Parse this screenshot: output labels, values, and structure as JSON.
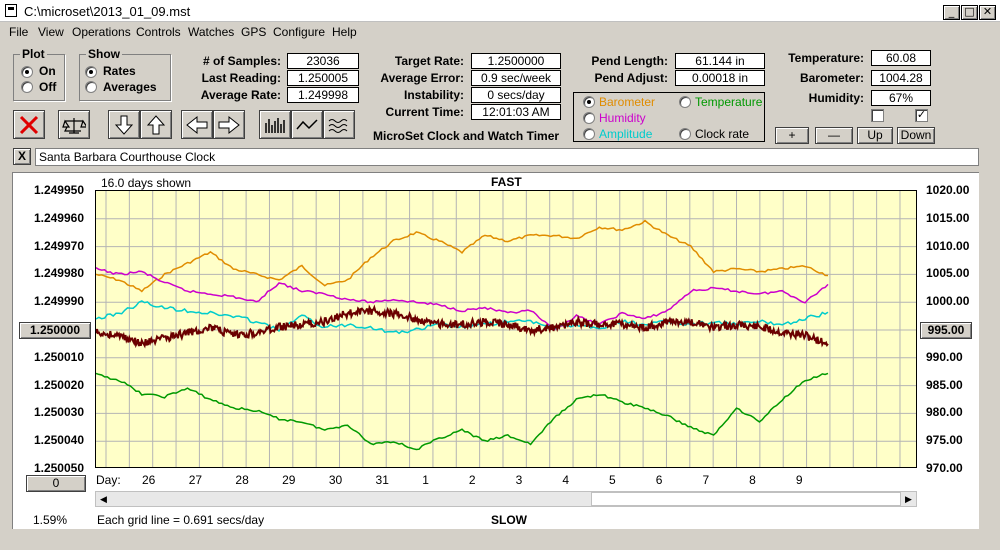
{
  "window": {
    "title": "C:\\microset\\2013_01_09.mst"
  },
  "menu": [
    "File",
    "View",
    "Operations",
    "Controls",
    "Watches",
    "GPS",
    "Configure",
    "Help"
  ],
  "plot_group": {
    "caption": "Plot",
    "on": "On",
    "off": "Off",
    "selected": "On"
  },
  "show_group": {
    "caption": "Show",
    "rates": "Rates",
    "averages": "Averages",
    "selected": "Rates"
  },
  "stats": {
    "samples_label": "# of Samples:",
    "samples": "23036",
    "last_label": "Last Reading:",
    "last": "1.250005",
    "avg_label": "Average Rate:",
    "avg": "1.249998",
    "target_label": "Target Rate:",
    "target": "1.2500000",
    "error_label": "Average Error:",
    "error": "0.9 sec/week",
    "instab_label": "Instability:",
    "instab": "0 secs/day",
    "time_label": "Current Time:",
    "time": "12:01:03 AM",
    "pend_len_label": "Pend Length:",
    "pend_len": "61.144 in",
    "pend_adj_label": "Pend Adjust:",
    "pend_adj": "0.00018 in",
    "temp_label": "Temperature:",
    "temp": "60.08",
    "baro_label": "Barometer:",
    "baro": "1004.28",
    "hum_label": "Humidity:",
    "hum": "67%"
  },
  "app_caption": "MicroSet Clock and Watch Timer",
  "aux_select": {
    "barometer": "Barometer",
    "temperature": "Temperature",
    "humidity": "Humidity",
    "amplitude": "Amplitude",
    "clock_rate": "Clock rate",
    "selected": "Barometer",
    "colors": {
      "barometer": "#e08c00",
      "temperature": "#009900",
      "humidity": "#cc00cc",
      "amplitude": "#00cccc",
      "clock_rate": "#000000"
    }
  },
  "scale_buttons": {
    "plus": "+",
    "minus": "—",
    "up": "Up",
    "down": "Down"
  },
  "checkboxes": [
    false,
    true
  ],
  "watch_name": "Santa Barbara Courthouse Clock",
  "close_x": "X",
  "graph": {
    "days_shown": "16.0 days shown",
    "fast": "FAST",
    "slow": "SLOW",
    "grid_note": "Each grid line = 0.691 secs/day",
    "percent": "1.59%",
    "day_label": "Day:",
    "left_value_button": "1.250000",
    "right_value_button": "995.00",
    "bottom_left_button": "0"
  },
  "chart_data": {
    "type": "line",
    "title": "",
    "y_left_ticks": [
      "1.249950",
      "1.249960",
      "1.249970",
      "1.249980",
      "1.249990",
      "1.250000",
      "1.250010",
      "1.250020",
      "1.250030",
      "1.250040",
      "1.250050"
    ],
    "y_right_ticks": [
      "1020.00",
      "1015.00",
      "1010.00",
      "1005.00",
      "1000.00",
      "995.00",
      "990.00",
      "985.00",
      "980.00",
      "975.00",
      "970.00"
    ],
    "x_ticks": [
      "26",
      "27",
      "28",
      "29",
      "30",
      "31",
      "1",
      "2",
      "3",
      "4",
      "5",
      "6",
      "7",
      "8",
      "9"
    ],
    "ylim_left": [
      1.24995,
      1.25005
    ],
    "ylim_right": [
      970,
      1020
    ],
    "grid": true,
    "series": [
      {
        "key": "barometer",
        "color": "#e08c00",
        "right_axis": true,
        "x": [
          0,
          1,
          2,
          3,
          4,
          5,
          6,
          7,
          8,
          9,
          10,
          11,
          12,
          13,
          14,
          15,
          16,
          17,
          18,
          19,
          20,
          21,
          22,
          23,
          24,
          25,
          26,
          27,
          28,
          29,
          30,
          31,
          32
        ],
        "values": [
          1005.0,
          1004.0,
          1002.0,
          1005.0,
          1007.0,
          1009.0,
          1006.0,
          1005.0,
          1004.0,
          1006.5,
          1003.0,
          1004.0,
          1008.0,
          1011.0,
          1012.5,
          1011.0,
          1009.0,
          1012.0,
          1011.0,
          1012.0,
          1012.0,
          1011.5,
          1013.5,
          1013.0,
          1014.5,
          1012.0,
          1010.0,
          1005.5,
          1006.0,
          1005.5,
          1006.0,
          1006.5,
          1004.8
        ]
      },
      {
        "key": "humidity",
        "color": "#cc00cc",
        "right_axis": true,
        "x": [
          0,
          1,
          2,
          3,
          4,
          5,
          6,
          7,
          8,
          9,
          10,
          11,
          12,
          13,
          14,
          15,
          16,
          17,
          18,
          19,
          20,
          21,
          22,
          23,
          24,
          25,
          26,
          27,
          28,
          29,
          30,
          31,
          32
        ],
        "values": [
          1006.0,
          1005.0,
          1005.5,
          1003.5,
          1002.0,
          1001.5,
          1001.0,
          1000.0,
          1003.5,
          1002.0,
          1001.5,
          1000.5,
          1000.0,
          1000.5,
          1000.0,
          999.5,
          998.5,
          999.0,
          998.0,
          998.5,
          995.0,
          997.5,
          996.0,
          998.0,
          997.0,
          998.5,
          1002.0,
          1002.5,
          1002.0,
          1001.5,
          1002.0,
          1000.0,
          1003.2
        ]
      },
      {
        "key": "amplitude",
        "color": "#00cccc",
        "right_axis": true,
        "x": [
          0,
          1,
          2,
          3,
          4,
          5,
          6,
          7,
          8,
          9,
          10,
          11,
          12,
          13,
          14,
          15,
          16,
          17,
          18,
          19,
          20,
          21,
          22,
          23,
          24,
          25,
          26,
          27,
          28,
          29,
          30,
          31,
          32
        ],
        "values": [
          997.0,
          998.0,
          1000.0,
          999.0,
          998.5,
          998.0,
          997.5,
          996.5,
          995.0,
          997.5,
          995.5,
          996.0,
          995.5,
          994.5,
          995.0,
          996.0,
          995.5,
          996.0,
          996.5,
          996.5,
          995.5,
          996.0,
          995.0,
          996.5,
          996.0,
          996.5,
          996.0,
          996.5,
          996.0,
          996.5,
          996.0,
          997.0,
          998.2
        ]
      },
      {
        "key": "temperature",
        "color": "#009900",
        "right_axis": true,
        "x": [
          0,
          1,
          2,
          3,
          4,
          5,
          6,
          7,
          8,
          9,
          10,
          11,
          12,
          13,
          14,
          15,
          16,
          17,
          18,
          19,
          20,
          21,
          22,
          23,
          24,
          25,
          26,
          27,
          28,
          29,
          30,
          31,
          32
        ],
        "values": [
          987.0,
          986.0,
          983.5,
          983.0,
          984.5,
          982.5,
          981.0,
          980.5,
          979.0,
          978.5,
          977.0,
          978.0,
          974.5,
          975.0,
          973.5,
          975.5,
          977.0,
          975.0,
          976.0,
          974.5,
          979.0,
          982.5,
          983.5,
          982.0,
          981.0,
          979.5,
          977.5,
          976.0,
          981.0,
          978.5,
          982.5,
          986.0,
          987.2
        ]
      },
      {
        "key": "clock_rate",
        "color": "#6b0000",
        "right_axis": false,
        "x": [
          0,
          1,
          2,
          3,
          4,
          5,
          6,
          7,
          8,
          9,
          10,
          11,
          12,
          13,
          14,
          15,
          16,
          17,
          18,
          19,
          20,
          21,
          22,
          23,
          24,
          25,
          26,
          27,
          28,
          29,
          30,
          31,
          32
        ],
        "values": [
          1.250001,
          1.250002,
          1.250005,
          1.250003,
          1.250001,
          1.249999,
          1.250002,
          1.250001,
          1.249999,
          1.249998,
          1.249997,
          1.249994,
          1.249993,
          1.249994,
          1.249996,
          1.249998,
          1.249998,
          1.249997,
          1.249998,
          1.25,
          1.249999,
          1.249997,
          1.249998,
          1.249998,
          1.249999,
          1.249997,
          1.249997,
          1.249999,
          1.249998,
          1.249999,
          1.250001,
          1.250002,
          1.250005
        ]
      }
    ]
  }
}
